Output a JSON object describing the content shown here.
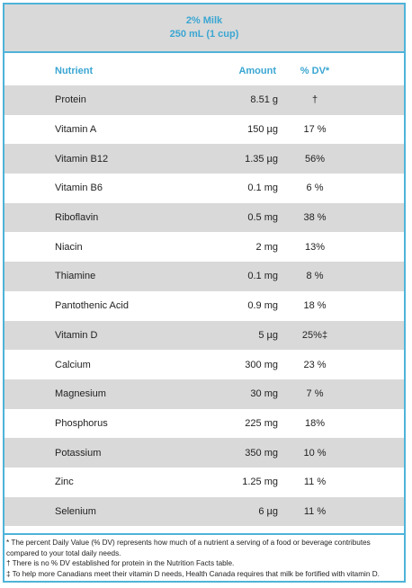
{
  "title": {
    "line1": "2% Milk",
    "line2": "250 mL (1 cup)"
  },
  "headers": {
    "nutrient": "Nutrient",
    "amount": "Amount",
    "dv": "% DV*"
  },
  "rows": [
    {
      "nutrient": "Protein",
      "amount": "8.51 g",
      "dv": "†"
    },
    {
      "nutrient": "Vitamin A",
      "amount": "150 µg",
      "dv": "17 %"
    },
    {
      "nutrient": "Vitamin B12",
      "amount": "1.35 µg",
      "dv": "56%"
    },
    {
      "nutrient": "Vitamin B6",
      "amount": "0.1 mg",
      "dv": "6 %"
    },
    {
      "nutrient": "Riboflavin",
      "amount": "0.5 mg",
      "dv": "38 %"
    },
    {
      "nutrient": "Niacin",
      "amount": "2 mg",
      "dv": "13%"
    },
    {
      "nutrient": "Thiamine",
      "amount": "0.1 mg",
      "dv": "8 %"
    },
    {
      "nutrient": "Pantothenic Acid",
      "amount": "0.9 mg",
      "dv": "18 %"
    },
    {
      "nutrient": "Vitamin D",
      "amount": "5 µg",
      "dv": "25%‡"
    },
    {
      "nutrient": "Calcium",
      "amount": "300 mg",
      "dv": "23 %"
    },
    {
      "nutrient": "Magnesium",
      "amount": "30 mg",
      "dv": "7 %"
    },
    {
      "nutrient": "Phosphorus",
      "amount": "225 mg",
      "dv": "18%"
    },
    {
      "nutrient": "Potassium",
      "amount": "350 mg",
      "dv": "10 %"
    },
    {
      "nutrient": "Zinc",
      "amount": "1.25 mg",
      "dv": "11 %"
    },
    {
      "nutrient": "Selenium",
      "amount": "6 µg",
      "dv": "11 %"
    }
  ],
  "footnotes": [
    "* The percent Daily Value (% DV) represents how much of a nutrient a serving of a food or beverage contributes compared to your total daily needs.",
    "† There is no % DV established for protein in the Nutrition Facts table.",
    "‡ To help more Canadians meet their vitamin D needs, Health Canada requires that milk be fortified with vitamin D."
  ],
  "colors": {
    "accent": "#4fb3d9",
    "header_text": "#3aa6d2",
    "shade": "#d9d9d9"
  }
}
